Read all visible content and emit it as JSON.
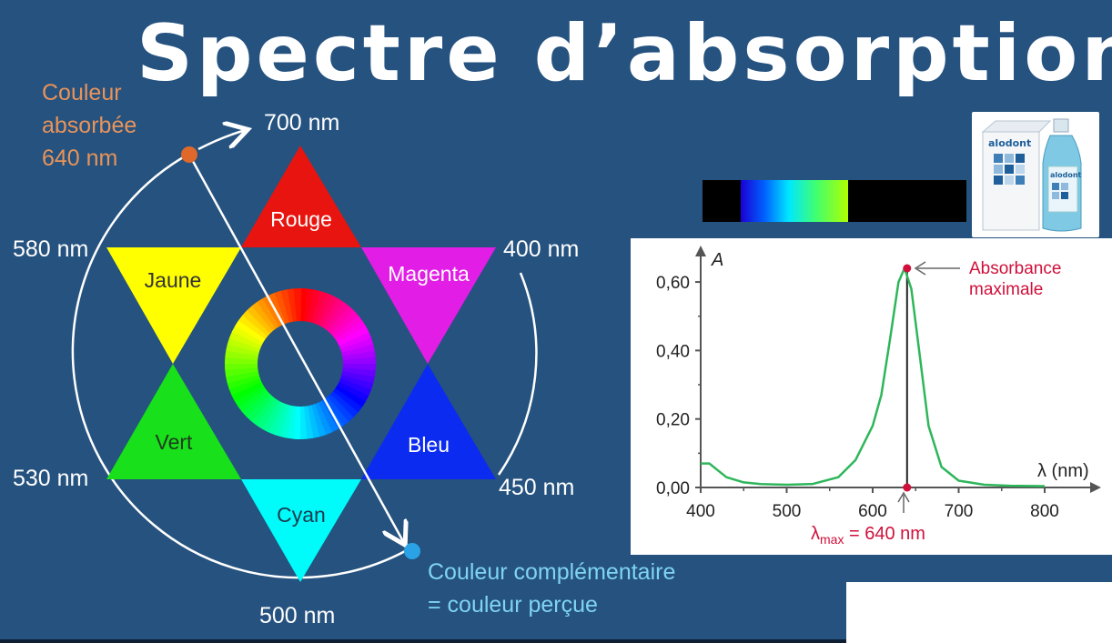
{
  "title": "Spectre d’absorption",
  "wheel": {
    "absorbed_label": [
      "Couleur",
      "absorbée",
      "640 nm"
    ],
    "complementary_label": [
      "Couleur complémentaire",
      "= couleur perçue"
    ],
    "wavelengths": {
      "top": "700 nm",
      "left_upper": "580 nm",
      "right_upper": "400 nm",
      "left_lower": "530 nm",
      "right_lower": "450 nm",
      "bottom": "500 nm"
    },
    "triangles": {
      "red": "Rouge",
      "yellow": "Jaune",
      "magenta": "Magenta",
      "green": "Vert",
      "blue": "Bleu",
      "cyan": "Cyan"
    },
    "colors": {
      "red": "#e8140f",
      "yellow": "#ffff00",
      "magenta": "#e21de6",
      "green": "#18e01a",
      "blue": "#0b2cf0",
      "cyan": "#00fbfb",
      "absorbed_dot": "#e0682a",
      "perceived_dot": "#2aa2e6"
    }
  },
  "product": {
    "brand": "alodont"
  },
  "chart_data": {
    "type": "line",
    "ylabel": "A",
    "xlabel": "λ (nm)",
    "xlim": [
      400,
      800
    ],
    "ylim": [
      0,
      0.64
    ],
    "yticks": [
      "0,00",
      "0,20",
      "0,40",
      "0,60"
    ],
    "xticks": [
      "400",
      "500",
      "600",
      "700",
      "800"
    ],
    "series": [
      {
        "color": "#2eb65a",
        "points": [
          [
            400,
            0.07
          ],
          [
            410,
            0.07
          ],
          [
            420,
            0.05
          ],
          [
            430,
            0.03
          ],
          [
            450,
            0.015
          ],
          [
            470,
            0.01
          ],
          [
            500,
            0.008
          ],
          [
            530,
            0.01
          ],
          [
            560,
            0.03
          ],
          [
            580,
            0.08
          ],
          [
            600,
            0.18
          ],
          [
            610,
            0.27
          ],
          [
            620,
            0.43
          ],
          [
            630,
            0.6
          ],
          [
            637,
            0.64
          ],
          [
            645,
            0.58
          ],
          [
            655,
            0.38
          ],
          [
            665,
            0.18
          ],
          [
            680,
            0.06
          ],
          [
            700,
            0.02
          ],
          [
            730,
            0.008
          ],
          [
            760,
            0.005
          ],
          [
            800,
            0.004
          ]
        ]
      }
    ],
    "peak": {
      "x": 640,
      "y": 0.64
    },
    "peak_label": [
      "Absorbance",
      "maximale"
    ],
    "lambda_max_label": {
      "symbol": "λ",
      "subscript": "max",
      "value": "= 640 nm"
    }
  }
}
